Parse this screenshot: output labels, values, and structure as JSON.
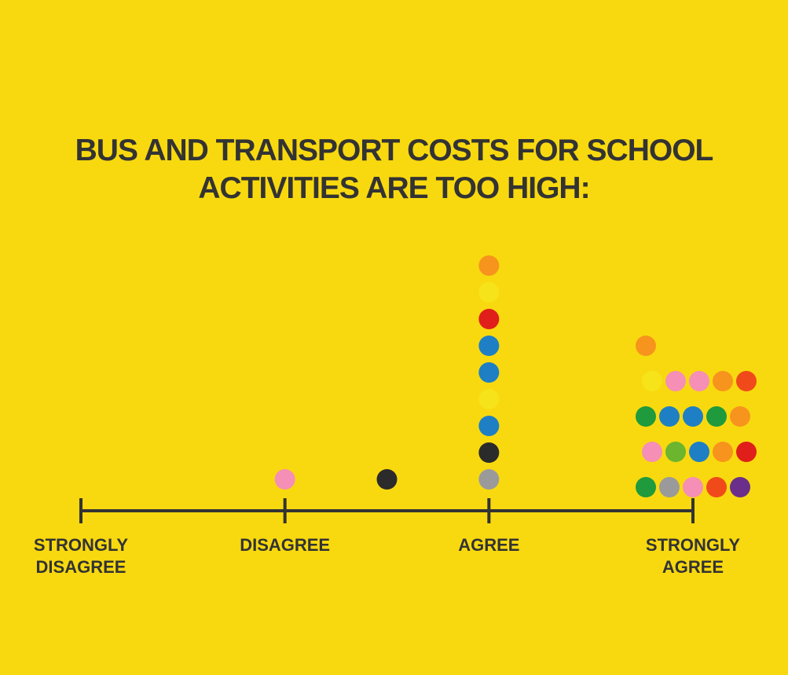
{
  "chart_data": {
    "type": "dotplot",
    "title": "BUS AND TRANSPORT COSTS FOR SCHOOL\nACTIVITIES ARE TOO HIGH:",
    "xlim": [
      0,
      3
    ],
    "xticks": [
      {
        "value": 0,
        "label": "STRONGLY\nDISAGREE"
      },
      {
        "value": 1,
        "label": "DISAGREE"
      },
      {
        "value": 2,
        "label": "AGREE"
      },
      {
        "value": 3,
        "label": "STRONGLY\nAGREE"
      }
    ],
    "x": [
      1,
      1.5,
      2,
      2,
      2,
      2,
      2,
      2,
      2,
      2,
      2,
      3,
      3,
      3,
      3,
      3,
      3,
      3,
      3,
      3,
      3,
      3,
      3,
      3,
      3,
      3,
      3,
      3,
      3,
      3,
      3,
      3
    ],
    "colors": [
      "#f58fb5",
      "#2b2b2b",
      "#9a9a9a",
      "#2b2b2b",
      "#1e7fc4",
      "#f7e31a",
      "#1e7fc4",
      "#1e7fc4",
      "#e01f1a",
      "#f7e31a",
      "#f7941d",
      "#1f9a3c",
      "#9a9a9a",
      "#f58fb5",
      "#f04a1a",
      "#6a2f8a",
      "#f58fb5",
      "#6cb52e",
      "#1e7fc4",
      "#f7941d",
      "#e01f1a",
      "#1f9a3c",
      "#1e7fc4",
      "#1e7fc4",
      "#1f9a3c",
      "#f7941d",
      "#f7e31a",
      "#f58fb5",
      "#f58fb5",
      "#f7941d",
      "#f04a1a",
      "#f7941d"
    ]
  }
}
